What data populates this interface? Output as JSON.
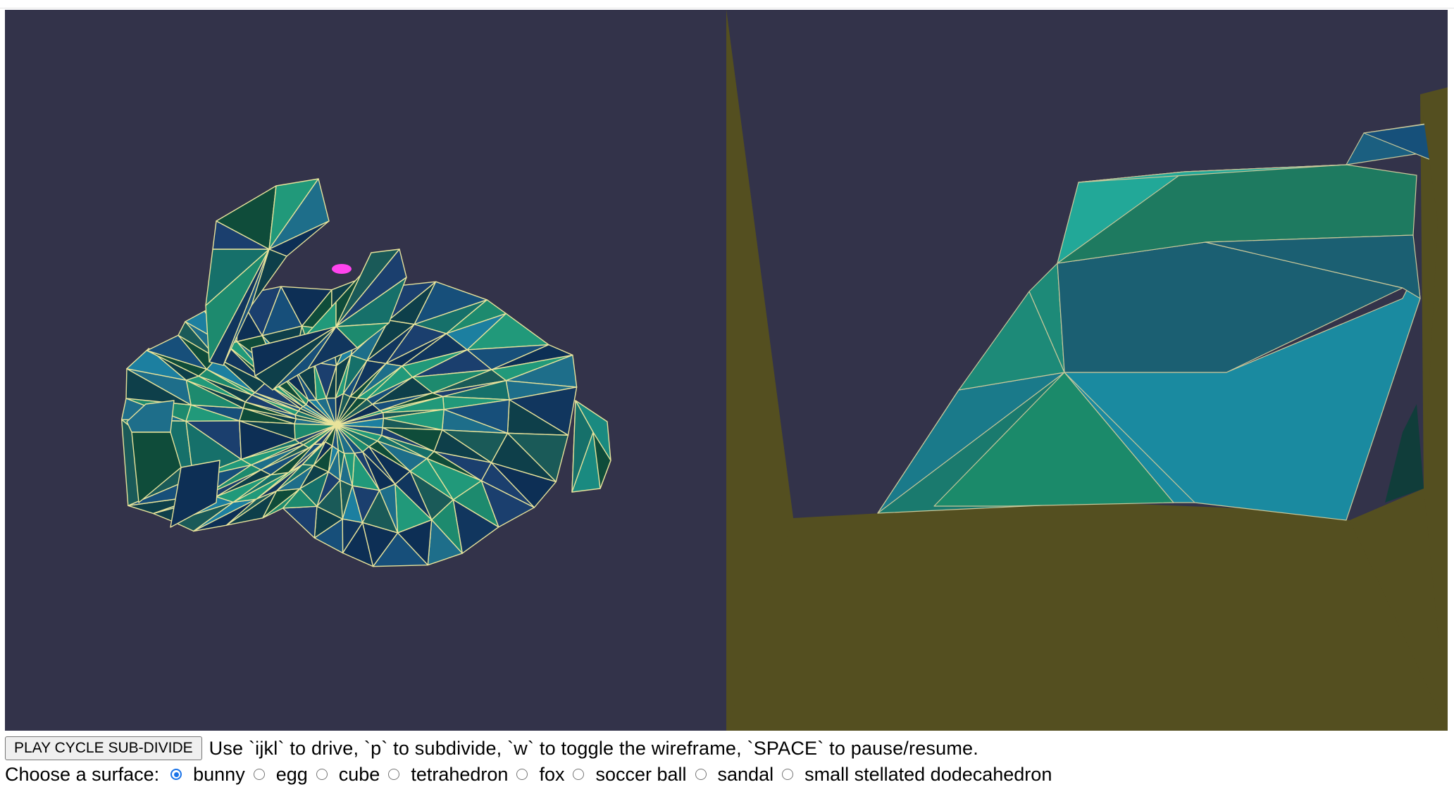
{
  "colors": {
    "viewport_bg": "#33334a",
    "wire": "#e8e39b",
    "ground": "#544f20",
    "marker": "#ff44ee",
    "radio_accent": "#1a73e8"
  },
  "controls": {
    "play_button": "PLAY CYCLE SUB-DIVIDE",
    "instructions": "Use `ijkl` to drive, `p` to subdivide, `w` to toggle the wireframe, `SPACE` to pause/resume.",
    "surface_label": "Choose a surface:",
    "surfaces": [
      {
        "label": "bunny",
        "checked": true
      },
      {
        "label": "egg",
        "checked": false
      },
      {
        "label": "cube",
        "checked": false
      },
      {
        "label": "tetrahedron",
        "checked": false
      },
      {
        "label": "fox",
        "checked": false
      },
      {
        "label": "soccer ball",
        "checked": false
      },
      {
        "label": "sandal",
        "checked": false
      },
      {
        "label": "small stellated dodecahedron",
        "checked": false
      }
    ]
  }
}
